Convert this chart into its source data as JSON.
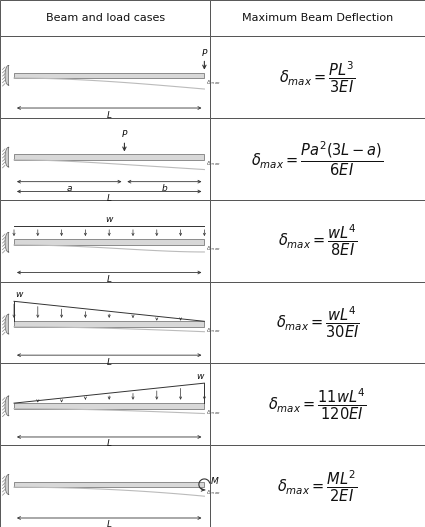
{
  "title_left": "Beam and load cases",
  "title_right": "Maximum Beam Deflection",
  "formulas": [
    "$\\delta_{max} = \\dfrac{PL^3}{3EI}$",
    "$\\delta_{max} = \\dfrac{Pa^2(3L-a)}{6EI}$",
    "$\\delta_{max} = \\dfrac{wL^4}{8EI}$",
    "$\\delta_{max} = \\dfrac{wL^4}{30EI}$",
    "$\\delta_{max} = \\dfrac{11wL^4}{120EI}$",
    "$\\delta_{max} = \\dfrac{ML^2}{2EI}$"
  ],
  "n_rows": 6,
  "col_split": 0.495,
  "bg_color": "#ffffff",
  "border_color": "#555555",
  "text_color": "#111111",
  "header_fontsize": 8.0,
  "formula_fontsize": 10.5
}
